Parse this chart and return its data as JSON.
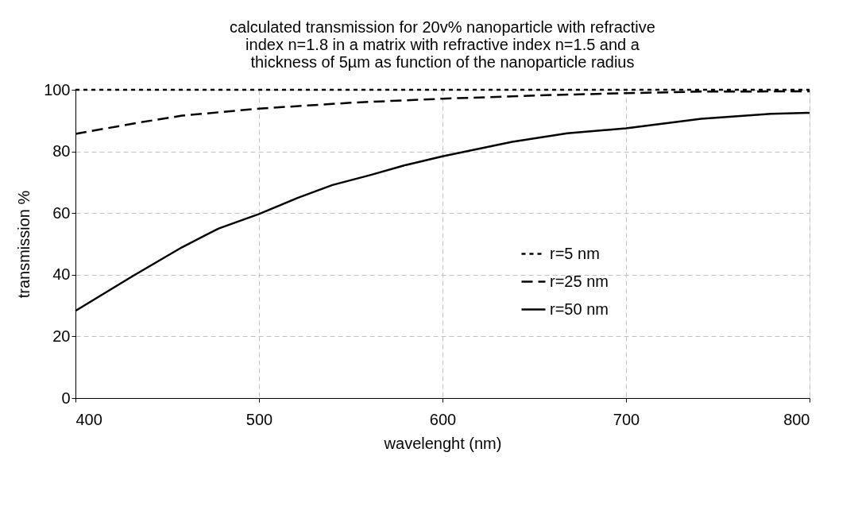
{
  "chart_data": {
    "type": "line",
    "title": "calculated transmission for 20v% nanoparticle with refractive\nindex n=1.8 in a matrix with refractive index n=1.5 and a\nthickness of 5µm as function of the nanoparticle radius",
    "xlabel": "wavelenght (nm)",
    "ylabel": "transmission %",
    "xlim": [
      400,
      800
    ],
    "xticks": [
      400,
      500,
      600,
      700,
      800
    ],
    "ylim": [
      0,
      100
    ],
    "yticks": [
      0,
      20,
      40,
      60,
      80,
      100
    ],
    "grid": true,
    "legend": "right",
    "marker": "none",
    "series": [
      {
        "name": "r=5 nm",
        "color": "#000000",
        "line_style": "dotted",
        "x": [
          400,
          500,
          600,
          700,
          800
        ],
        "values": [
          100,
          100,
          100,
          100,
          100
        ]
      },
      {
        "name": "r=25 nm",
        "color": "#000000",
        "line_style": "dashed",
        "x": [
          400,
          433,
          458,
          500,
          550,
          600,
          653,
          700,
          741,
          800
        ],
        "values": [
          85.7,
          89.2,
          91.6,
          93.9,
          95.8,
          97.1,
          98.2,
          98.9,
          99.4,
          99.5
        ]
      },
      {
        "name": "r=50 nm",
        "color": "#000000",
        "line_style": "solid",
        "x": [
          400,
          431,
          458,
          478,
          500,
          521,
          540,
          561,
          580,
          600,
          638,
          668,
          700,
          741,
          779,
          800
        ],
        "values": [
          28.3,
          39.5,
          48.9,
          55,
          59.7,
          64.9,
          69.1,
          72.4,
          75.6,
          78.4,
          83.1,
          85.9,
          87.5,
          90.6,
          92.2,
          92.5
        ]
      }
    ]
  }
}
